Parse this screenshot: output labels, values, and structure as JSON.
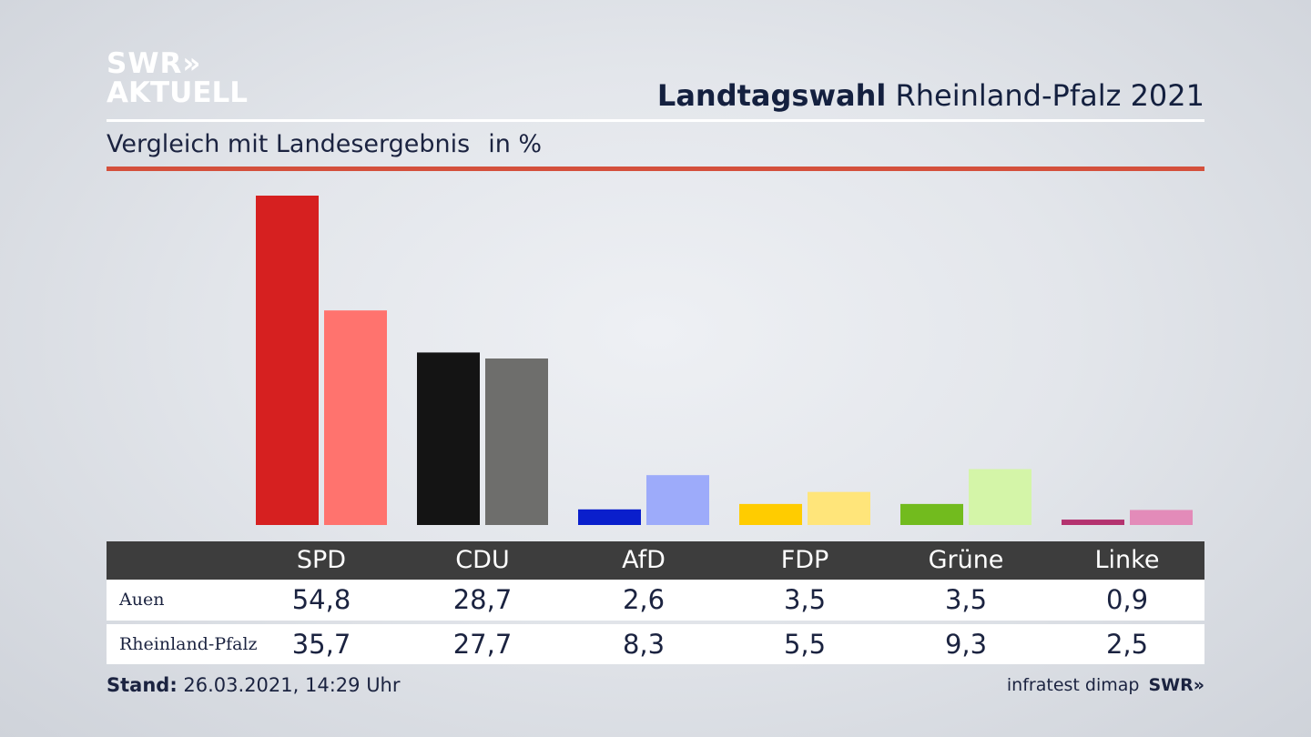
{
  "logo": {
    "line1": "SWR»",
    "line2": "AKTUELL"
  },
  "header": {
    "title_bold": "Landtagswahl",
    "title_rest": "Rheinland-Pfalz 2021"
  },
  "subtitle": {
    "text": "Vergleich mit Landesergebnis",
    "unit": "in %"
  },
  "table": {
    "rows": [
      {
        "label": "Auen",
        "values": [
          "54,8",
          "28,7",
          "2,6",
          "3,5",
          "3,5",
          "0,9"
        ]
      },
      {
        "label": "Rheinland-Pfalz",
        "values": [
          "35,7",
          "27,7",
          "8,3",
          "5,5",
          "9,3",
          "2,5"
        ]
      }
    ]
  },
  "footer": {
    "stand_label": "Stand:",
    "stand_value": "26.03.2021, 14:29 Uhr",
    "source": "infratest dimap",
    "brand": "SWR»"
  },
  "chart_data": {
    "type": "bar",
    "title": "Landtagswahl Rheinland-Pfalz 2021",
    "subtitle": "Vergleich mit Landesergebnis in %",
    "categories": [
      "SPD",
      "CDU",
      "AfD",
      "FDP",
      "Grüne",
      "Linke"
    ],
    "series": [
      {
        "name": "Auen",
        "values": [
          54.8,
          28.7,
          2.6,
          3.5,
          3.5,
          0.9
        ],
        "colors": [
          "#d62020",
          "#141414",
          "#0a1fcc",
          "#ffcc00",
          "#72bb1e",
          "#b4336f"
        ]
      },
      {
        "name": "Rheinland-Pfalz",
        "values": [
          35.7,
          27.7,
          8.3,
          5.5,
          9.3,
          2.5
        ],
        "colors": [
          "#ff736e",
          "#6e6e6c",
          "#9dabfa",
          "#ffe57a",
          "#d4f5a8",
          "#e38bb9"
        ]
      }
    ],
    "ylim": [
      0,
      54.8
    ],
    "grid": false
  }
}
